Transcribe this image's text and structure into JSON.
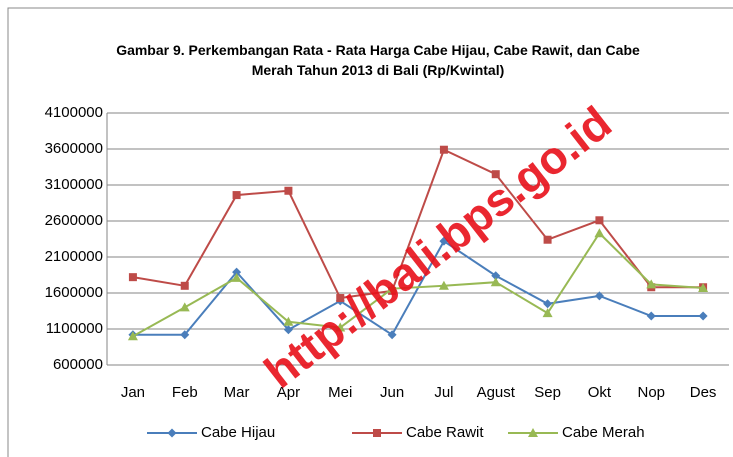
{
  "chart_data": {
    "type": "line",
    "title": "Gambar 9. Perkembangan Rata - Rata Harga Cabe Hijau, Cabe Rawit, dan Cabe Merah Tahun 2013 di Bali (Rp/Kwintal)",
    "categories": [
      "Jan",
      "Feb",
      "Mar",
      "Apr",
      "Mei",
      "Jun",
      "Jul",
      "Agust",
      "Sep",
      "Okt",
      "Nop",
      "Des"
    ],
    "series": [
      {
        "name": "Cabe Hijau",
        "color": "#4a7ebb",
        "marker": "diamond",
        "values": [
          1020000,
          1020000,
          1890000,
          1090000,
          1490000,
          1020000,
          2320000,
          1840000,
          1450000,
          1560000,
          1280000,
          1280000
        ]
      },
      {
        "name": "Cabe Rawit",
        "color": "#be4b48",
        "marker": "square",
        "values": [
          1820000,
          1700000,
          2960000,
          3020000,
          1530000,
          1630000,
          3590000,
          3250000,
          2340000,
          2610000,
          1680000,
          1680000
        ]
      },
      {
        "name": "Cabe Merah",
        "color": "#98b954",
        "marker": "triangle",
        "values": [
          1000000,
          1400000,
          1810000,
          1200000,
          1120000,
          1660000,
          1700000,
          1750000,
          1320000,
          2430000,
          1720000,
          1670000
        ]
      }
    ],
    "ylim": [
      600000,
      4100000
    ],
    "yticks": [
      600000,
      1100000,
      1600000,
      2100000,
      2600000,
      3100000,
      3600000,
      4100000
    ],
    "grid": true,
    "legend": "bottom",
    "watermark": "http://bali.bps.go.id"
  }
}
